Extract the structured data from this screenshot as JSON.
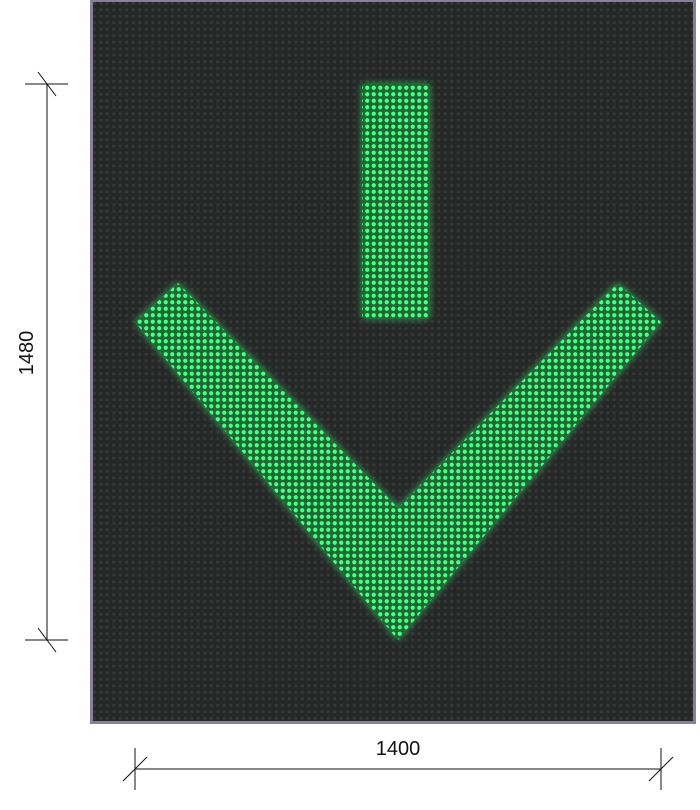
{
  "sign": {
    "panel_color": "#2a2c2b",
    "led_color": "#2ee86a",
    "glow_color": "#1fbf55",
    "symbol": "down-arrow-icon"
  },
  "dimensions": {
    "height_label": "1480",
    "width_label": "1400",
    "line_color": "#111111"
  }
}
